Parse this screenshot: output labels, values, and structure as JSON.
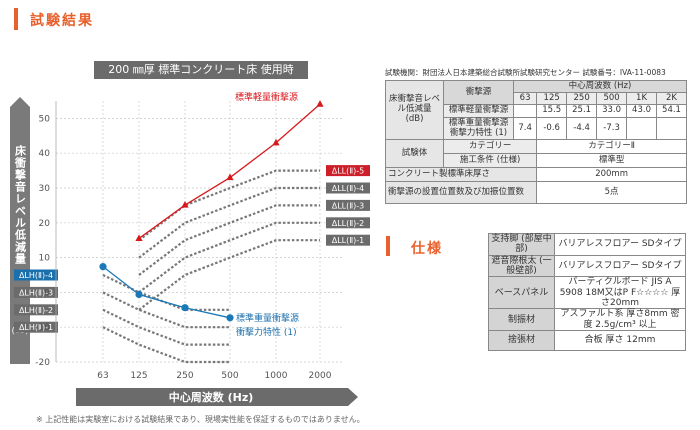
{
  "section_titles": {
    "results": "試験結果",
    "specs": "仕様"
  },
  "chart_banner": "200 ㎜厚 標準コンクリート床 使用時",
  "chart_data": {
    "type": "line",
    "title": "200 ㎜厚 標準コンクリート床 使用時",
    "xlabel": "中心周波数 (Hz)",
    "ylabel": "床衝撃音レベル低減量",
    "ylabel_unit": "(dB)",
    "categories": [
      "63",
      "125",
      "250",
      "500",
      "1000",
      "2000"
    ],
    "ylim": [
      -20,
      55
    ],
    "yticks": [
      -20,
      -10,
      0,
      10,
      20,
      30,
      40,
      50
    ],
    "ytick_labels": [
      "-20",
      "-10",
      "0",
      "10",
      "20",
      "30",
      "40",
      "50"
    ],
    "series": [
      {
        "name": "標準軽量衝撃源",
        "color": "#d7191c",
        "values": [
          null,
          15.5,
          25.1,
          33.0,
          43.0,
          54.1
        ]
      },
      {
        "name": "標準重量衝撃源 衝撃力特性 (1)",
        "color": "#1a7ab8",
        "values": [
          7.4,
          -0.6,
          -4.4,
          -7.3,
          null,
          null
        ]
      }
    ],
    "reference_curves": [
      {
        "name": "ΔLL(Ⅱ)-5",
        "values": [
          null,
          15,
          25,
          30,
          35,
          35
        ],
        "highlight": true
      },
      {
        "name": "ΔLL(Ⅱ)-4",
        "values": [
          null,
          10,
          20,
          25,
          30,
          30
        ],
        "highlight": false
      },
      {
        "name": "ΔLL(Ⅱ)-3",
        "values": [
          null,
          5,
          15,
          20,
          25,
          25
        ],
        "highlight": false
      },
      {
        "name": "ΔLL(Ⅱ)-2",
        "values": [
          null,
          0,
          10,
          15,
          20,
          20
        ],
        "highlight": false
      },
      {
        "name": "ΔLL(Ⅱ)-1",
        "values": [
          null,
          -5,
          5,
          10,
          15,
          15
        ],
        "highlight": false
      },
      {
        "name": "ΔLH(Ⅱ)-4",
        "values": [
          5,
          0,
          -5,
          -5,
          null,
          null
        ],
        "highlight": true
      },
      {
        "name": "ΔLH(Ⅱ)-3",
        "values": [
          0,
          -5,
          -10,
          -10,
          null,
          null
        ],
        "highlight": false
      },
      {
        "name": "ΔLH(Ⅱ)-2",
        "values": [
          -5,
          -10,
          -15,
          -15,
          null,
          null
        ],
        "highlight": false
      },
      {
        "name": "ΔLH(Ⅱ)-1",
        "values": [
          -10,
          -15,
          -20,
          -20,
          null,
          null
        ],
        "highlight": false
      }
    ],
    "series_labels": {
      "light": "標準軽量衝撃源",
      "heavy_1": "標準重量衝撃源",
      "heavy_2": "衝撃力特性 (1)"
    }
  },
  "results_table": {
    "lab_info": "試験機関：財団法人日本建築総合試験所試験研究センター 試験番号：IVA-11-0083",
    "row_header": "床衝撃音レベル低減量 (dB)",
    "source_header": "衝撃源",
    "freq_header": "中心周波数 (Hz)",
    "freqs": [
      "63",
      "125",
      "250",
      "500",
      "1K",
      "2K"
    ],
    "rows": [
      {
        "source": "標準軽量衝撃源",
        "values": [
          "",
          "15.5",
          "25.1",
          "33.0",
          "43.0",
          "54.1"
        ]
      },
      {
        "source": "標準重量衝撃源 衝撃力特性 (1)",
        "values": [
          "7.4",
          "-0.6",
          "-4.4",
          "-7.3",
          "",
          ""
        ]
      }
    ],
    "specimen_header": "試験体",
    "category_label": "カテゴリー",
    "category_value": "カテゴリーⅡ",
    "construction_label": "施工条件 (仕様)",
    "construction_value": "標準型",
    "slab_label": "コンクリート製標準床厚さ",
    "slab_value": "200mm",
    "impact_label": "衝撃源の設置位置数及び加振位置数",
    "impact_value": "5点"
  },
  "spec_table": [
    {
      "label": "支持脚 (部屋中部)",
      "value": "バリアレスフロアー SDタイプ"
    },
    {
      "label": "遮音際根太 (一般壁部)",
      "value": "バリアレスフロアー SDタイプ"
    },
    {
      "label": "ベースパネル",
      "value": "パーティクルボード JIS A 5908 18M又はP F☆☆☆☆ 厚さ20mm"
    },
    {
      "label": "制振材",
      "value": "アスファルト系 厚さ8mm 密度 2.5g/cm³ 以上"
    },
    {
      "label": "捨張材",
      "value": "合板 厚さ 12mm"
    }
  ],
  "footnote": "※ 上記性能は実験室における試験結果であり、現場実性能を保証するものではありません。"
}
